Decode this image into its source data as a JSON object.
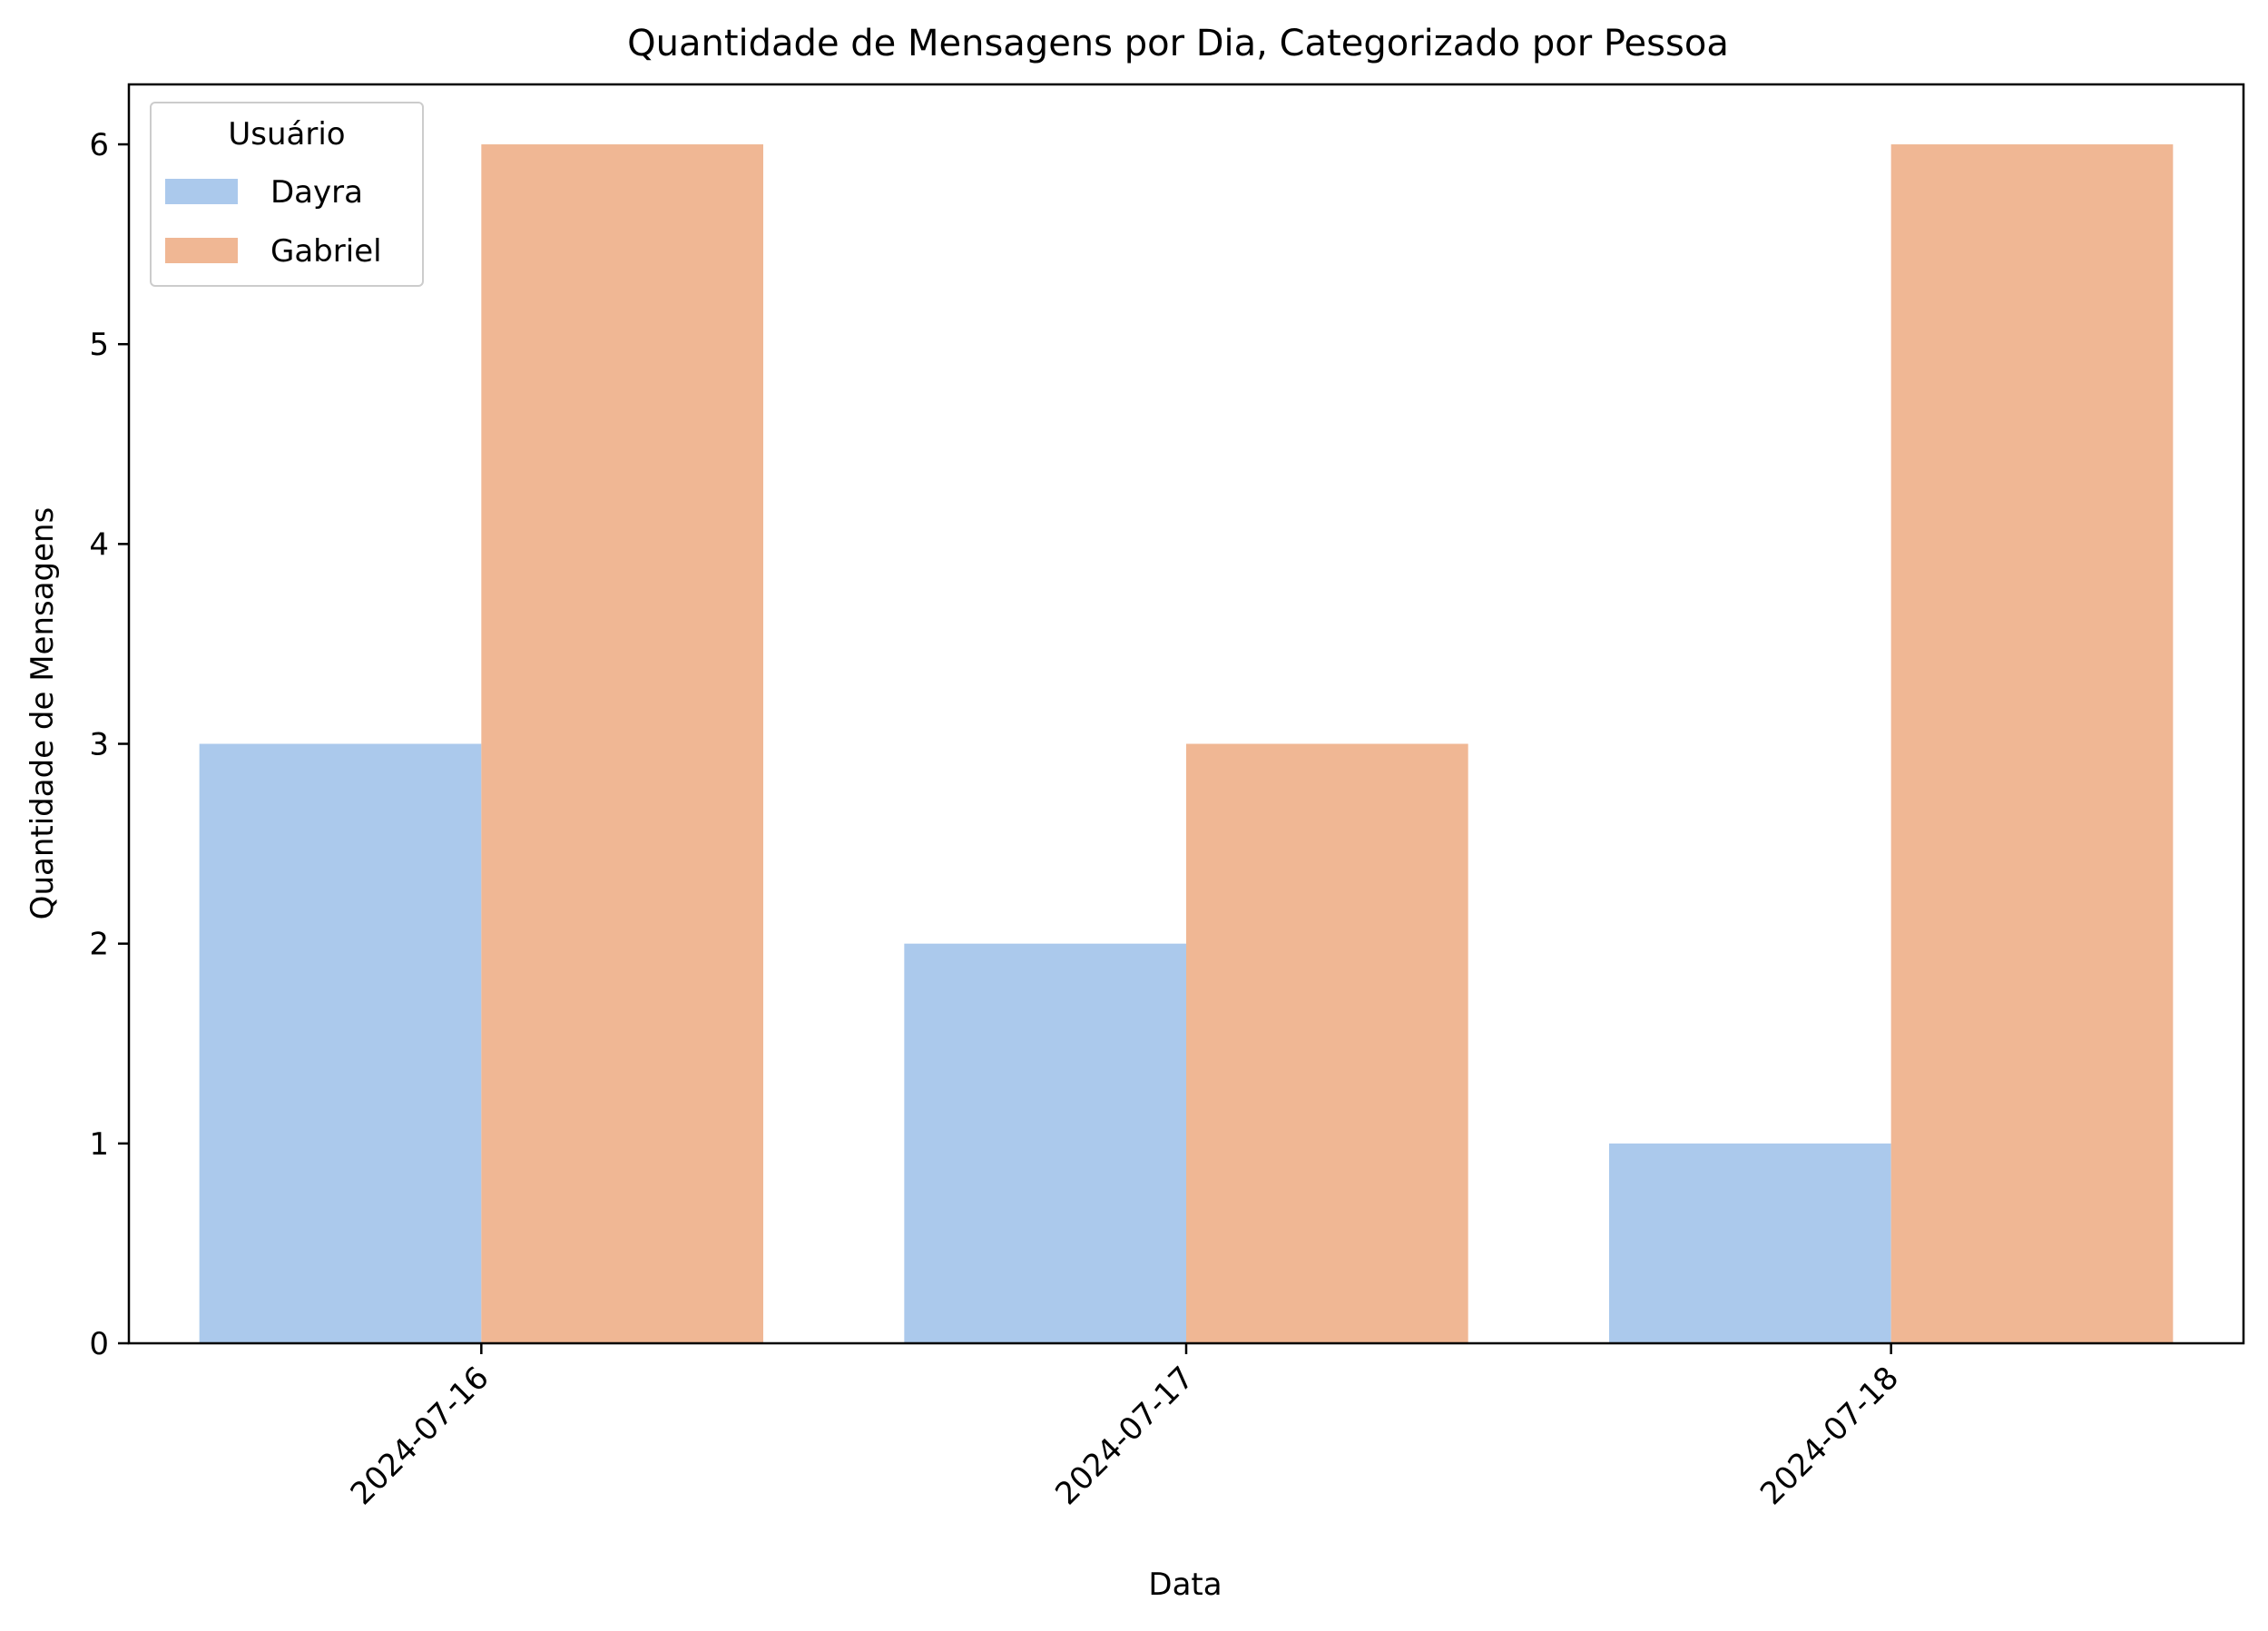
{
  "chart_data": {
    "type": "bar",
    "title": "Quantidade de Mensagens por Dia, Categorizado por Pessoa",
    "xlabel": "Data",
    "ylabel": "Quantidade de Mensagens",
    "categories": [
      "2024-07-16",
      "2024-07-17",
      "2024-07-18"
    ],
    "series": [
      {
        "name": "Dayra",
        "values": [
          3,
          2,
          1
        ],
        "color": "#abc9ec"
      },
      {
        "name": "Gabriel",
        "values": [
          6,
          3,
          6
        ],
        "color": "#f0b794"
      }
    ],
    "ylim": [
      0,
      6.3
    ],
    "yticks": [
      0,
      1,
      2,
      3,
      4,
      5,
      6
    ],
    "grid": false,
    "legend": {
      "title": "Usuário",
      "placement": "top-left"
    }
  }
}
